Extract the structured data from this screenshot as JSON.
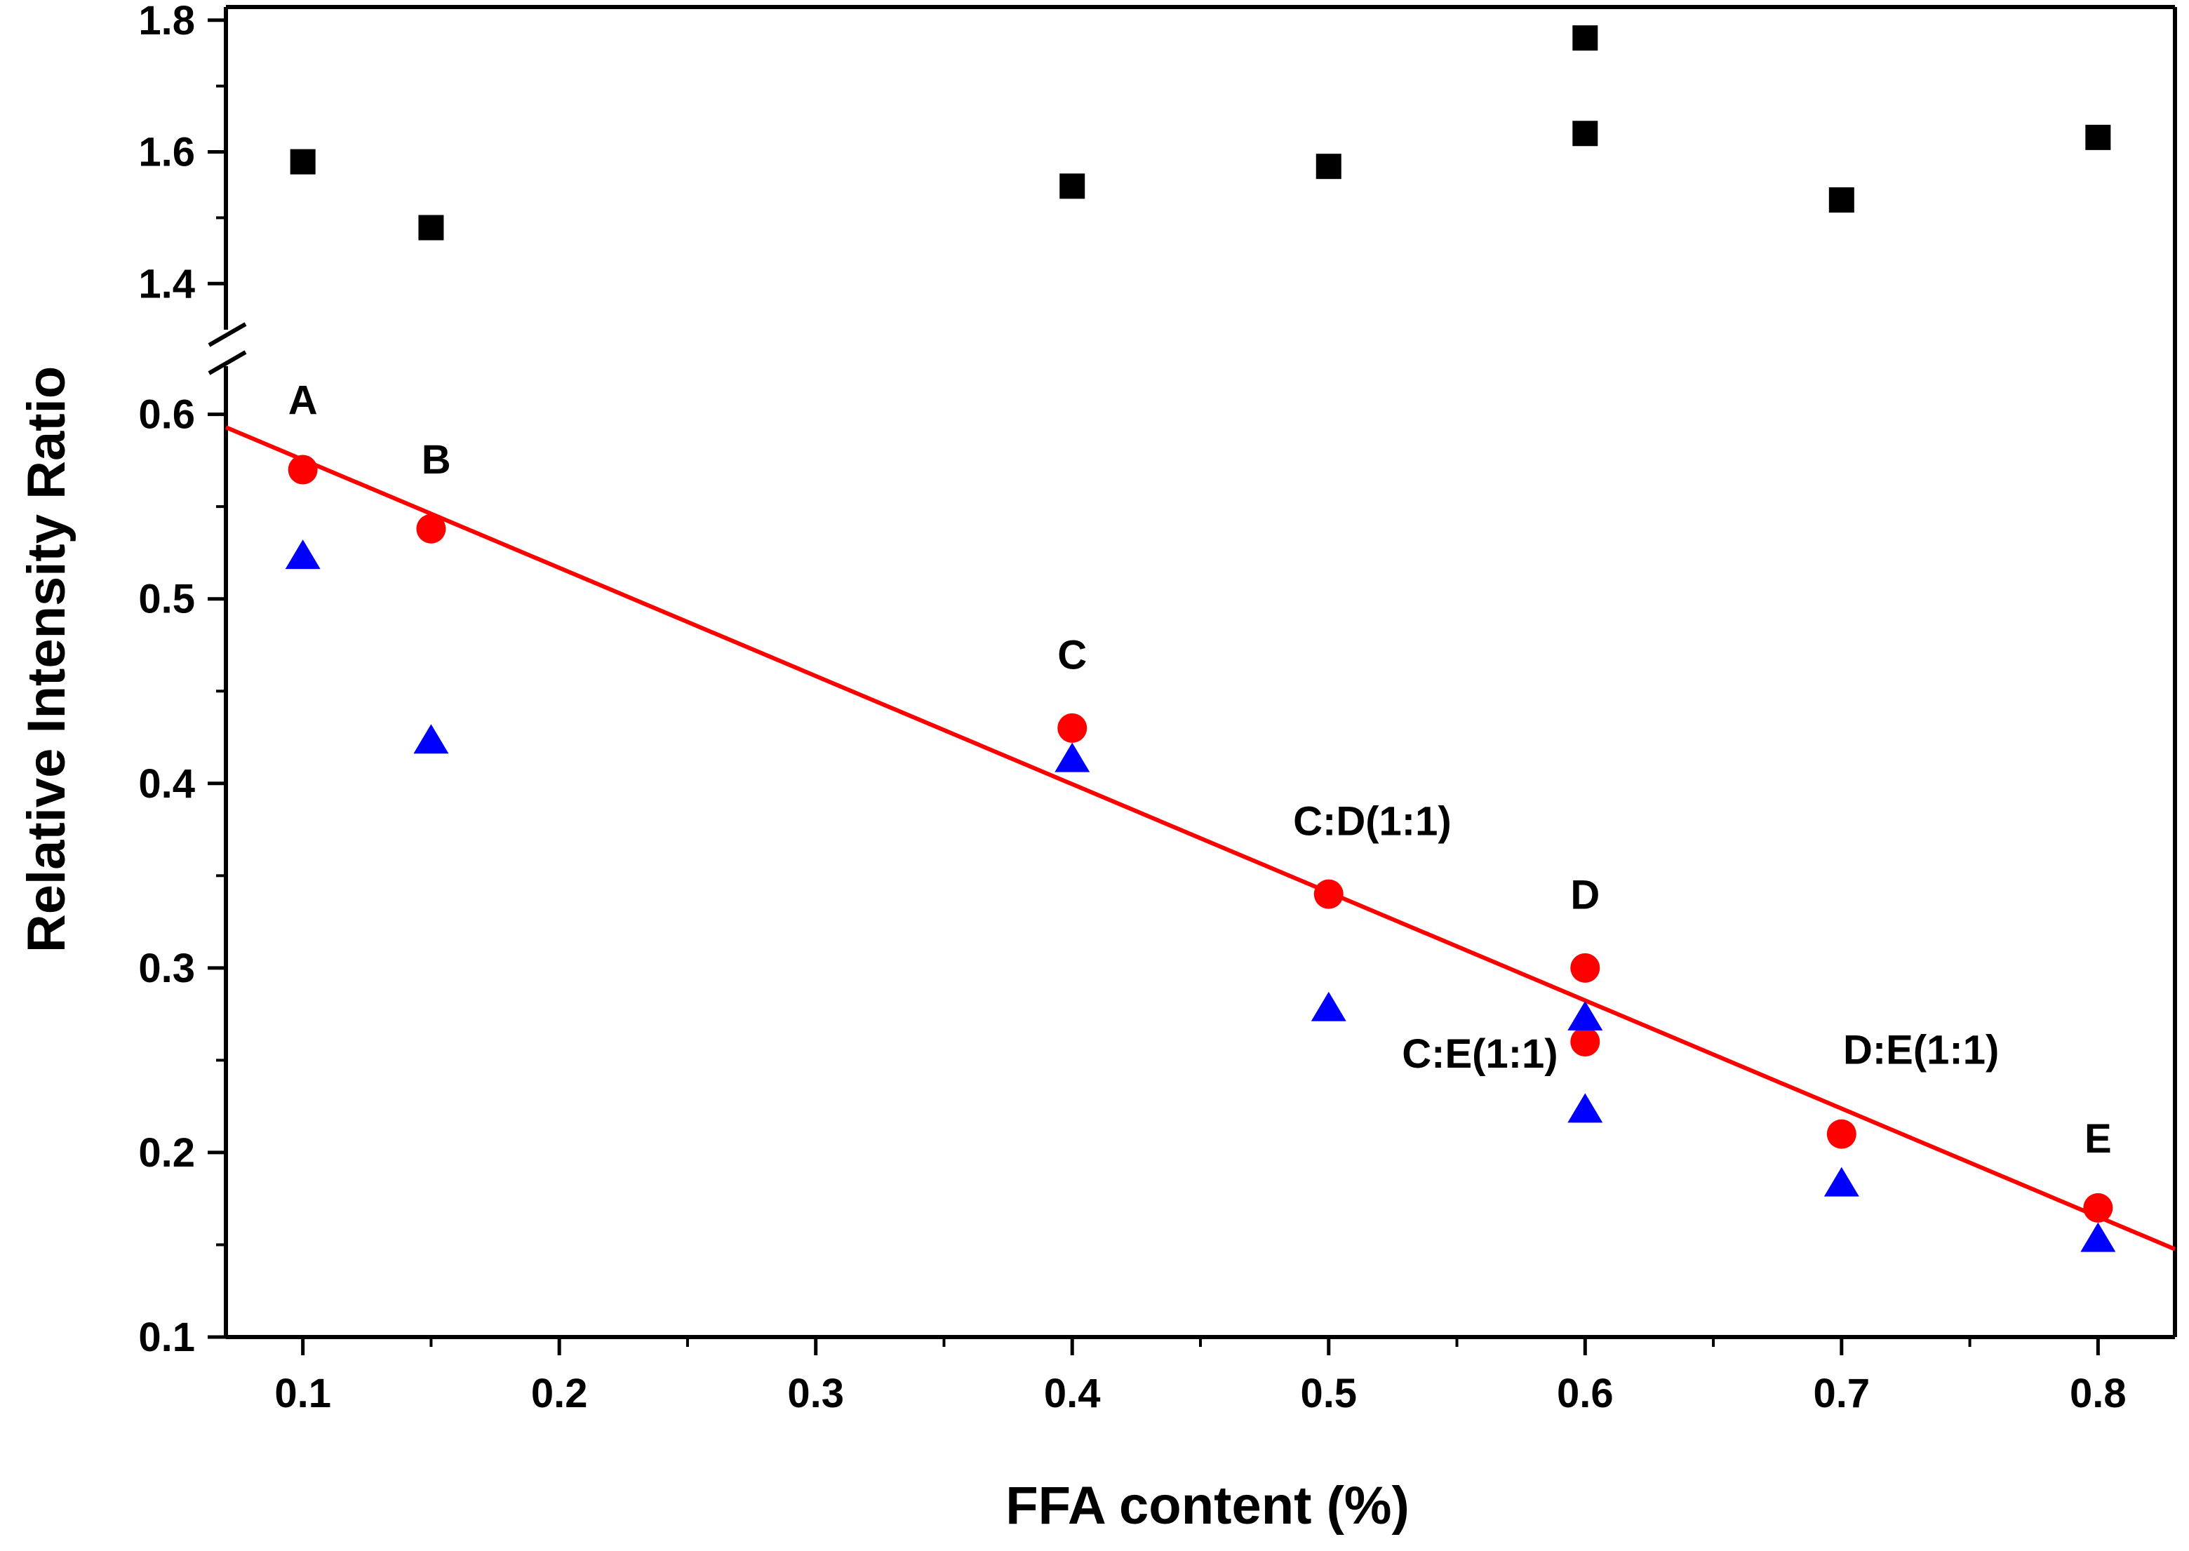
{
  "chart_data": {
    "type": "scatter",
    "title": "",
    "xlabel": "FFA content (%)",
    "ylabel": "Relative Intensity Ratio",
    "xlim": [
      0.07,
      0.83
    ],
    "ylim_lower": [
      0.1,
      0.62
    ],
    "ylim_upper": [
      1.33,
      1.82
    ],
    "axis_break": "y between 0.62 and 1.33",
    "x_ticks": [
      "0.1",
      "0.2",
      "0.3",
      "0.4",
      "0.5",
      "0.6",
      "0.7",
      "0.8"
    ],
    "y_ticks_lower": [
      "0.1",
      "0.2",
      "0.3",
      "0.4",
      "0.5",
      "0.6"
    ],
    "y_ticks_upper": [
      "1.4",
      "1.6",
      "1.8"
    ],
    "series": [
      {
        "name": "squares",
        "marker": "square",
        "color": "#000000",
        "points": [
          [
            0.1,
            1.585
          ],
          [
            0.15,
            1.485
          ],
          [
            0.4,
            1.548
          ],
          [
            0.5,
            1.578
          ],
          [
            0.6,
            1.773
          ],
          [
            0.6,
            1.628
          ],
          [
            0.7,
            1.527
          ],
          [
            0.8,
            1.622
          ]
        ]
      },
      {
        "name": "circles",
        "marker": "circle",
        "color": "#ff0000",
        "points": [
          [
            0.1,
            0.57
          ],
          [
            0.15,
            0.538
          ],
          [
            0.4,
            0.43
          ],
          [
            0.5,
            0.34
          ],
          [
            0.6,
            0.3
          ],
          [
            0.6,
            0.26
          ],
          [
            0.7,
            0.21
          ],
          [
            0.8,
            0.17
          ]
        ]
      },
      {
        "name": "triangles",
        "marker": "triangle",
        "color": "#0000ff",
        "points": [
          [
            0.1,
            0.523
          ],
          [
            0.15,
            0.423
          ],
          [
            0.4,
            0.413
          ],
          [
            0.5,
            0.278
          ],
          [
            0.6,
            0.273
          ],
          [
            0.6,
            0.223
          ],
          [
            0.7,
            0.183
          ],
          [
            0.8,
            0.153
          ]
        ]
      }
    ],
    "fit_line": {
      "color": "#ff0000",
      "slope": -0.586,
      "intercept": 0.634,
      "x_range": [
        0.07,
        0.83
      ]
    },
    "annotations": [
      {
        "text": "A",
        "x": 0.1,
        "y": 0.6
      },
      {
        "text": "B",
        "x": 0.152,
        "y": 0.568
      },
      {
        "text": "C",
        "x": 0.4,
        "y": 0.462
      },
      {
        "text": "C:D(1:1)",
        "x": 0.517,
        "y": 0.372
      },
      {
        "text": "D",
        "x": 0.6,
        "y": 0.332
      },
      {
        "text": "C:E(1:1)",
        "x": 0.559,
        "y": 0.246
      },
      {
        "text": "D:E(1:1)",
        "x": 0.731,
        "y": 0.248
      },
      {
        "text": "E",
        "x": 0.8,
        "y": 0.2
      }
    ]
  }
}
